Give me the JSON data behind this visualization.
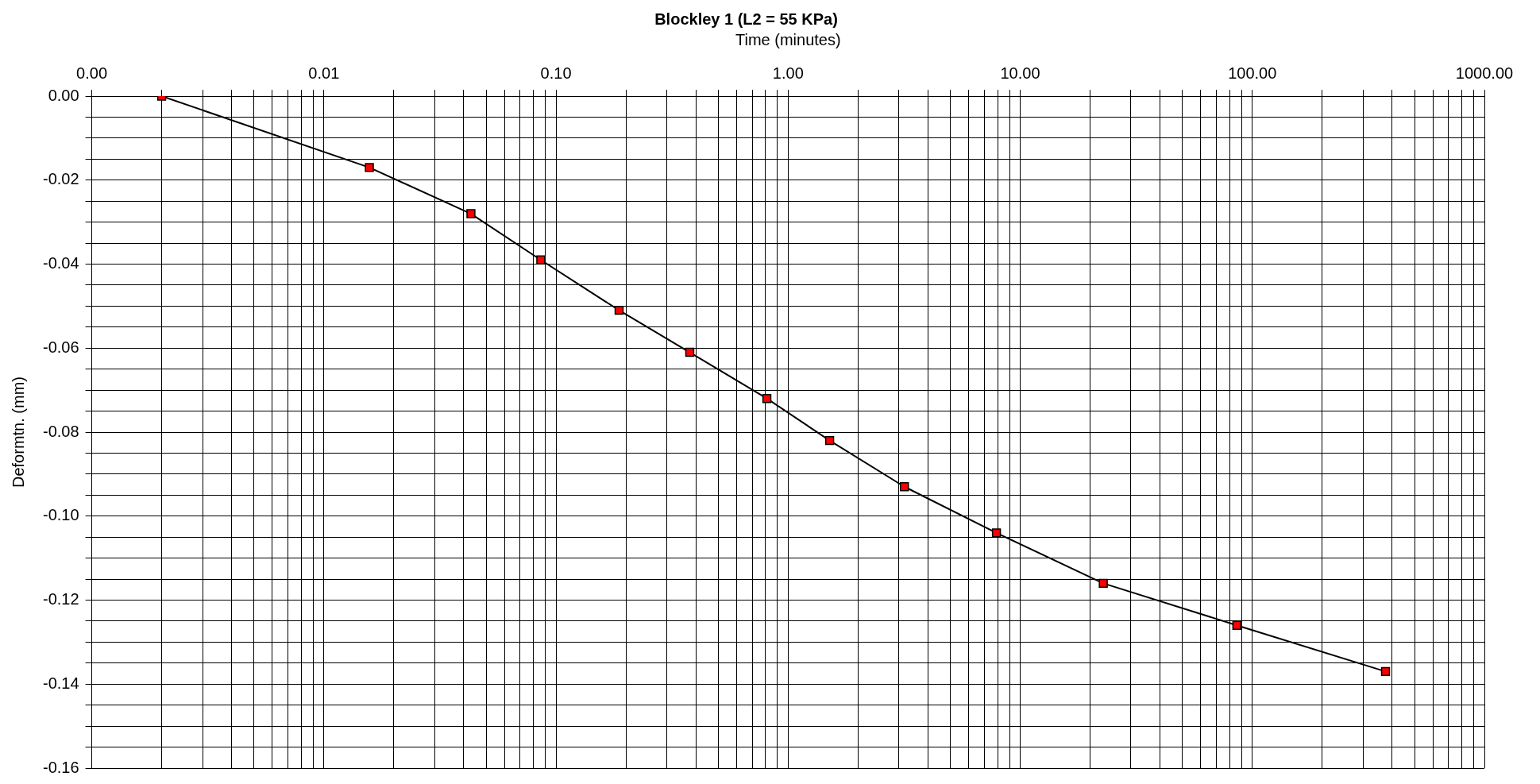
{
  "chart_data": {
    "type": "line",
    "title": "Blockley 1 (L2 = 55 KPa)",
    "xlabel": "Time (minutes)",
    "ylabel": "Deformtn. (mm)",
    "log": "x",
    "grid": true,
    "marker": "square",
    "line_style": "solid",
    "xlim": [
      0.001,
      1000
    ],
    "xticks": [
      {
        "value": 0.001,
        "label": "0.00"
      },
      {
        "value": 0.002,
        "label": null
      },
      {
        "value": 0.003,
        "label": null
      },
      {
        "value": 0.004,
        "label": null
      },
      {
        "value": 0.005,
        "label": null
      },
      {
        "value": 0.006,
        "label": null
      },
      {
        "value": 0.007,
        "label": null
      },
      {
        "value": 0.008,
        "label": null
      },
      {
        "value": 0.009,
        "label": null
      },
      {
        "value": 0.01,
        "label": "0.01"
      },
      {
        "value": 0.02,
        "label": null
      },
      {
        "value": 0.03,
        "label": null
      },
      {
        "value": 0.04,
        "label": null
      },
      {
        "value": 0.05,
        "label": null
      },
      {
        "value": 0.06,
        "label": null
      },
      {
        "value": 0.07,
        "label": null
      },
      {
        "value": 0.08,
        "label": null
      },
      {
        "value": 0.09,
        "label": null
      },
      {
        "value": 0.1,
        "label": "0.10"
      },
      {
        "value": 0.2,
        "label": null
      },
      {
        "value": 0.3,
        "label": null
      },
      {
        "value": 0.4,
        "label": null
      },
      {
        "value": 0.5,
        "label": null
      },
      {
        "value": 0.6,
        "label": null
      },
      {
        "value": 0.7,
        "label": null
      },
      {
        "value": 0.8,
        "label": null
      },
      {
        "value": 0.9,
        "label": null
      },
      {
        "value": 1,
        "label": "1.00"
      },
      {
        "value": 2,
        "label": null
      },
      {
        "value": 3,
        "label": null
      },
      {
        "value": 4,
        "label": null
      },
      {
        "value": 5,
        "label": null
      },
      {
        "value": 6,
        "label": null
      },
      {
        "value": 7,
        "label": null
      },
      {
        "value": 8,
        "label": null
      },
      {
        "value": 9,
        "label": null
      },
      {
        "value": 10,
        "label": "10.00"
      },
      {
        "value": 20,
        "label": null
      },
      {
        "value": 30,
        "label": null
      },
      {
        "value": 40,
        "label": null
      },
      {
        "value": 50,
        "label": null
      },
      {
        "value": 60,
        "label": null
      },
      {
        "value": 70,
        "label": null
      },
      {
        "value": 80,
        "label": null
      },
      {
        "value": 90,
        "label": null
      },
      {
        "value": 100,
        "label": "100.00"
      },
      {
        "value": 200,
        "label": null
      },
      {
        "value": 300,
        "label": null
      },
      {
        "value": 400,
        "label": null
      },
      {
        "value": 500,
        "label": null
      },
      {
        "value": 600,
        "label": null
      },
      {
        "value": 700,
        "label": null
      },
      {
        "value": 800,
        "label": null
      },
      {
        "value": 900,
        "label": null
      },
      {
        "value": 1000,
        "label": "1000.00"
      }
    ],
    "ylim": [
      -0.16,
      0
    ],
    "yticks": [
      {
        "value": 0,
        "label": "0.00"
      },
      {
        "value": -0.005,
        "label": null
      },
      {
        "value": -0.01,
        "label": null
      },
      {
        "value": -0.015,
        "label": null
      },
      {
        "value": -0.02,
        "label": "-0.02"
      },
      {
        "value": -0.025,
        "label": null
      },
      {
        "value": -0.03,
        "label": null
      },
      {
        "value": -0.035,
        "label": null
      },
      {
        "value": -0.04,
        "label": "-0.04"
      },
      {
        "value": -0.045,
        "label": null
      },
      {
        "value": -0.05,
        "label": null
      },
      {
        "value": -0.055,
        "label": null
      },
      {
        "value": -0.06,
        "label": "-0.06"
      },
      {
        "value": -0.065,
        "label": null
      },
      {
        "value": -0.07,
        "label": null
      },
      {
        "value": -0.075,
        "label": null
      },
      {
        "value": -0.08,
        "label": "-0.08"
      },
      {
        "value": -0.085,
        "label": null
      },
      {
        "value": -0.09,
        "label": null
      },
      {
        "value": -0.095,
        "label": null
      },
      {
        "value": -0.1,
        "label": "-0.10"
      },
      {
        "value": -0.105,
        "label": null
      },
      {
        "value": -0.11,
        "label": null
      },
      {
        "value": -0.115,
        "label": null
      },
      {
        "value": -0.12,
        "label": "-0.12"
      },
      {
        "value": -0.125,
        "label": null
      },
      {
        "value": -0.13,
        "label": null
      },
      {
        "value": -0.135,
        "label": null
      },
      {
        "value": -0.14,
        "label": "-0.14"
      },
      {
        "value": -0.145,
        "label": null
      },
      {
        "value": -0.15,
        "label": null
      },
      {
        "value": -0.155,
        "label": null
      },
      {
        "value": -0.16,
        "label": "-0.16"
      }
    ],
    "x": [
      0.002,
      0.0157,
      0.043,
      0.086,
      0.187,
      0.377,
      0.81,
      1.51,
      3.17,
      7.9,
      22.8,
      85.8,
      375
    ],
    "series": [
      {
        "color": "#000000",
        "colors": [
          "#ff0000",
          "#ff0000",
          "#ff0000",
          "#ff0000",
          "#ff0000",
          "#ff0000",
          "#ff0000",
          "#ff0000",
          "#ff0000",
          "#ff0000",
          "#ff0000",
          "#ff0000",
          "#ff0000"
        ],
        "values": [
          0,
          -0.017,
          -0.028,
          -0.039,
          -0.051,
          -0.061,
          -0.072,
          -0.082,
          -0.093,
          -0.104,
          -0.116,
          -0.126,
          -0.137
        ]
      }
    ]
  }
}
